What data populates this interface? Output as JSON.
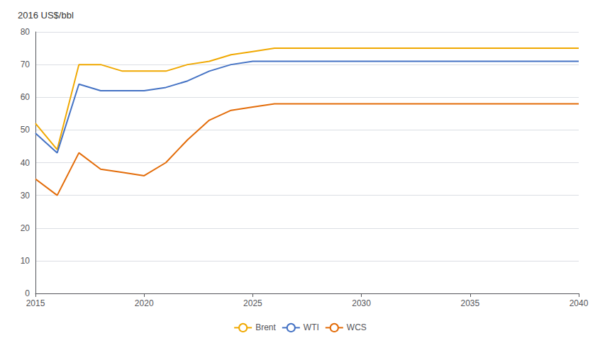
{
  "chart_data": {
    "type": "line",
    "title": "2016 US$/bbl",
    "x": [
      2015,
      2016,
      2017,
      2018,
      2019,
      2020,
      2021,
      2022,
      2023,
      2024,
      2025,
      2026,
      2027,
      2030,
      2035,
      2040
    ],
    "series": [
      {
        "name": "Brent",
        "color": "#F0A800",
        "values": [
          52,
          44,
          70,
          70,
          68,
          68,
          68,
          70,
          71,
          73,
          74,
          75,
          75,
          75,
          75,
          75
        ]
      },
      {
        "name": "WTI",
        "color": "#4472C4",
        "values": [
          49,
          43,
          64,
          62,
          62,
          62,
          63,
          65,
          68,
          70,
          71,
          71,
          71,
          71,
          71,
          71
        ]
      },
      {
        "name": "WCS",
        "color": "#E36C09",
        "values": [
          35,
          30,
          43,
          38,
          37,
          36,
          40,
          47,
          53,
          56,
          57,
          58,
          58,
          58,
          58,
          58
        ]
      }
    ],
    "xlim": [
      2015,
      2040
    ],
    "ylim": [
      0,
      80
    ],
    "xticks": [
      2015,
      2020,
      2025,
      2030,
      2035,
      2040
    ],
    "yticks": [
      0,
      10,
      20,
      30,
      40,
      50,
      60,
      70,
      80
    ],
    "grid": true,
    "legend": "bottom"
  }
}
